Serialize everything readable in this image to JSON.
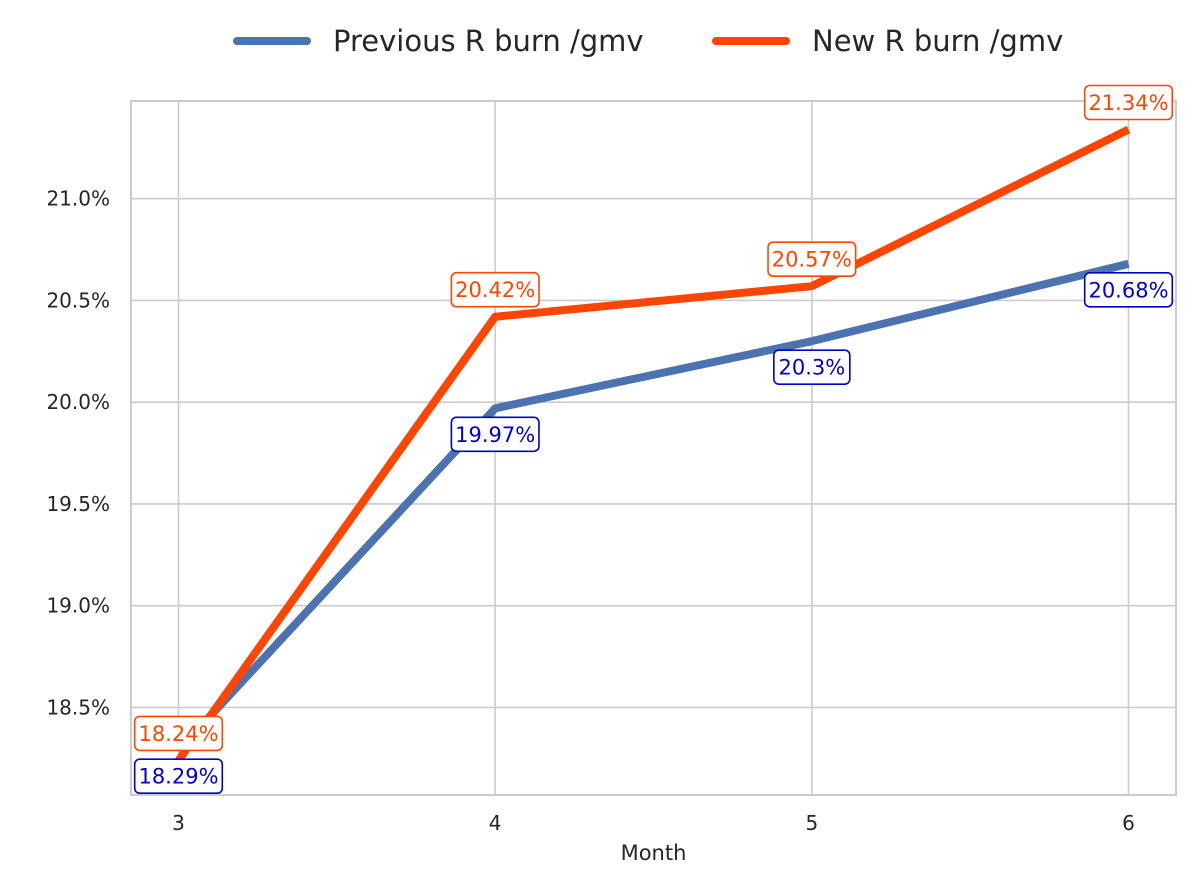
{
  "chart_data": {
    "type": "line",
    "xlabel": "Month",
    "ylabel": "",
    "x": [
      3,
      4,
      5,
      6
    ],
    "x_tick_labels": [
      "3",
      "4",
      "5",
      "6"
    ],
    "xlim": [
      2.85,
      6.15
    ],
    "ylim": [
      18.07,
      21.48
    ],
    "y_ticks": [
      18.5,
      19.0,
      19.5,
      20.0,
      20.5,
      21.0
    ],
    "y_tick_labels": [
      "18.5%",
      "19.0%",
      "19.5%",
      "20.0%",
      "20.5%",
      "21.0%"
    ],
    "grid": true,
    "legend_position": "top-center",
    "series": [
      {
        "name": "Previous R burn /gmv",
        "values": [
          18.29,
          19.97,
          20.3,
          20.68
        ],
        "labels": [
          "18.29%",
          "19.97%",
          "20.3%",
          "20.68%"
        ],
        "color": "#4c72b0",
        "label_color": "#0000cc",
        "label_placement": "below"
      },
      {
        "name": "New R burn /gmv",
        "values": [
          18.24,
          20.42,
          20.57,
          21.34
        ],
        "labels": [
          "18.24%",
          "20.42%",
          "20.57%",
          "21.34%"
        ],
        "color": "#ff4500",
        "label_color": "#ff4500",
        "label_placement": "above"
      }
    ]
  }
}
